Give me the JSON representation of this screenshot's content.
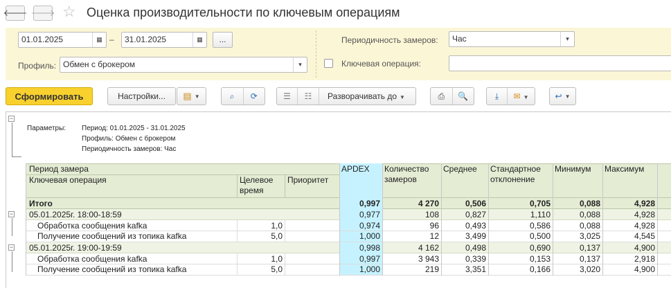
{
  "nav": {
    "back_icon": "arrow-left-icon",
    "forward_icon": "arrow-right-icon",
    "star_icon": "star-icon"
  },
  "title": "Оценка производительности по ключевым операциям",
  "filters": {
    "date_from": "01.01.2025",
    "dash": "–",
    "date_to": "31.01.2025",
    "more_label": "...",
    "profile_label": "Профиль:",
    "profile_value": "Обмен с брокером",
    "periodicity_label": "Периодичность замеров:",
    "periodicity_value": "Час",
    "key_op_label": "Ключевая операция:",
    "key_op_checked": false,
    "key_op_value": ""
  },
  "toolbar": {
    "generate": "Сформировать",
    "settings": "Настройки...",
    "expand_to": "Разворачивать до"
  },
  "params": {
    "caption": "Параметры:",
    "lines": [
      "Период: 01.01.2025 - 31.01.2025",
      "Профиль: Обмен с брокером",
      "Периодичность замеров: Час"
    ]
  },
  "table": {
    "headers": {
      "period": "Период замера",
      "key_op": "Ключевая операция",
      "target": "Целевое время",
      "priority": "Приоритет",
      "apdex": "APDEX",
      "count": "Количество замеров",
      "avg": "Среднее",
      "std": "Стандартное отклонение",
      "min": "Минимум",
      "max": "Максимум"
    },
    "total": {
      "label": "Итого",
      "apdex": "0,997",
      "count": "4 270",
      "avg": "0,506",
      "std": "0,705",
      "min": "0,088",
      "max": "4,928"
    },
    "groups": [
      {
        "label": "05.01.2025г.  18:00-18:59",
        "apdex": "0,977",
        "count": "108",
        "avg": "0,827",
        "std": "1,110",
        "min": "0,088",
        "max": "4,928",
        "rows": [
          {
            "op": "Обработка сообщения kafka",
            "target": "1,0",
            "priority": "",
            "apdex": "0,974",
            "count": "96",
            "avg": "0,493",
            "std": "0,586",
            "min": "0,088",
            "max": "4,928"
          },
          {
            "op": "Получение сообщений из топика kafka",
            "target": "5,0",
            "priority": "",
            "apdex": "1,000",
            "count": "12",
            "avg": "3,499",
            "std": "0,500",
            "min": "3,025",
            "max": "4,545"
          }
        ]
      },
      {
        "label": "05.01.2025г.  19:00-19:59",
        "apdex": "0,998",
        "count": "4 162",
        "avg": "0,498",
        "std": "0,690",
        "min": "0,137",
        "max": "4,900",
        "rows": [
          {
            "op": "Обработка сообщения kafka",
            "target": "1,0",
            "priority": "",
            "apdex": "0,997",
            "count": "3 943",
            "avg": "0,339",
            "std": "0,153",
            "min": "0,137",
            "max": "2,918"
          },
          {
            "op": "Получение сообщений из топика kafka",
            "target": "5,0",
            "priority": "",
            "apdex": "1,000",
            "count": "219",
            "avg": "3,351",
            "std": "0,166",
            "min": "3,020",
            "max": "4,900"
          }
        ]
      }
    ]
  },
  "colors": {
    "filter_bg": "#fbf6d6",
    "header_bg": "#e4ecd4",
    "apdex_bg": "#c6f2ff",
    "generate_btn": "#f9d12e",
    "group_bg": "#eef3e4"
  }
}
